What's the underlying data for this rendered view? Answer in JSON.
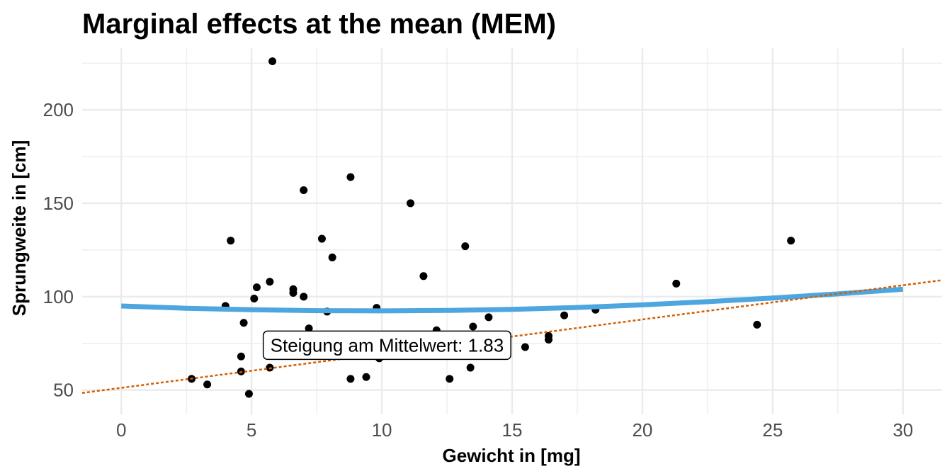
{
  "chart_data": {
    "type": "scatter",
    "title": "Marginal effects at the mean (MEM)",
    "xlabel": "Gewicht in [mg]",
    "ylabel": "Sprungweite in [cm]",
    "xlim": [
      -1.5,
      31.5
    ],
    "ylim": [
      37,
      233
    ],
    "xticks": [
      0,
      5,
      10,
      15,
      20,
      25,
      30
    ],
    "yticks": [
      50,
      100,
      150,
      200
    ],
    "grid": true,
    "legend": "none",
    "colors": {
      "points": "#000000",
      "curve": "#4ea6e0",
      "tangent": "#d55e00",
      "grid": "#ebebeb"
    },
    "points": [
      {
        "x": 5.8,
        "y": 226
      },
      {
        "x": 8.8,
        "y": 164
      },
      {
        "x": 7.0,
        "y": 157
      },
      {
        "x": 11.1,
        "y": 150
      },
      {
        "x": 4.2,
        "y": 130
      },
      {
        "x": 7.7,
        "y": 131
      },
      {
        "x": 13.2,
        "y": 127
      },
      {
        "x": 25.7,
        "y": 130
      },
      {
        "x": 8.1,
        "y": 121
      },
      {
        "x": 11.6,
        "y": 111
      },
      {
        "x": 5.7,
        "y": 108
      },
      {
        "x": 5.2,
        "y": 105
      },
      {
        "x": 6.6,
        "y": 104
      },
      {
        "x": 6.6,
        "y": 102
      },
      {
        "x": 7.0,
        "y": 100
      },
      {
        "x": 5.1,
        "y": 99
      },
      {
        "x": 21.3,
        "y": 107
      },
      {
        "x": 4.0,
        "y": 95
      },
      {
        "x": 7.9,
        "y": 92
      },
      {
        "x": 9.8,
        "y": 94
      },
      {
        "x": 18.2,
        "y": 93
      },
      {
        "x": 17.0,
        "y": 90
      },
      {
        "x": 14.1,
        "y": 89
      },
      {
        "x": 4.7,
        "y": 86
      },
      {
        "x": 24.4,
        "y": 85
      },
      {
        "x": 13.5,
        "y": 84
      },
      {
        "x": 7.2,
        "y": 83
      },
      {
        "x": 12.1,
        "y": 82
      },
      {
        "x": 16.4,
        "y": 79
      },
      {
        "x": 16.4,
        "y": 77
      },
      {
        "x": 15.5,
        "y": 73
      },
      {
        "x": 4.6,
        "y": 68
      },
      {
        "x": 9.9,
        "y": 67
      },
      {
        "x": 4.6,
        "y": 60
      },
      {
        "x": 5.7,
        "y": 62
      },
      {
        "x": 13.4,
        "y": 62
      },
      {
        "x": 2.7,
        "y": 56
      },
      {
        "x": 8.8,
        "y": 56
      },
      {
        "x": 9.4,
        "y": 57
      },
      {
        "x": 12.6,
        "y": 56
      },
      {
        "x": 3.3,
        "y": 53
      },
      {
        "x": 4.9,
        "y": 48
      }
    ],
    "curve": [
      {
        "x": 0,
        "y": 95
      },
      {
        "x": 2.5,
        "y": 93.8
      },
      {
        "x": 5,
        "y": 93
      },
      {
        "x": 7.5,
        "y": 92.5
      },
      {
        "x": 10,
        "y": 92.4
      },
      {
        "x": 12.5,
        "y": 92.6
      },
      {
        "x": 15,
        "y": 93.2
      },
      {
        "x": 17.5,
        "y": 94.2
      },
      {
        "x": 20,
        "y": 95.6
      },
      {
        "x": 22.5,
        "y": 97.3
      },
      {
        "x": 25,
        "y": 99.3
      },
      {
        "x": 27.5,
        "y": 101.5
      },
      {
        "x": 30,
        "y": 104
      }
    ],
    "tangent": {
      "slope": 1.83,
      "intercept": 51.2
    },
    "annotation": {
      "text": "Steigung am Mittelwert: 1.83",
      "x": 10.2,
      "y": 74
    }
  }
}
